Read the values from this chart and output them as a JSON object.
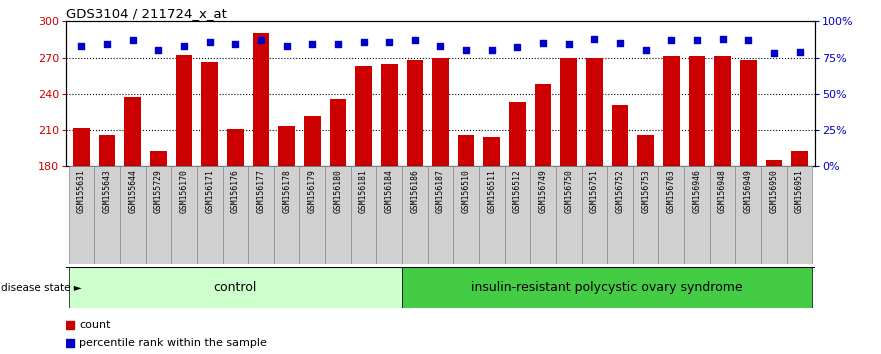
{
  "title": "GDS3104 / 211724_x_at",
  "samples": [
    "GSM155631",
    "GSM155643",
    "GSM155644",
    "GSM155729",
    "GSM156170",
    "GSM156171",
    "GSM156176",
    "GSM156177",
    "GSM156178",
    "GSM156179",
    "GSM156180",
    "GSM156181",
    "GSM156184",
    "GSM156186",
    "GSM156187",
    "GSM156510",
    "GSM156511",
    "GSM156512",
    "GSM156749",
    "GSM156750",
    "GSM156751",
    "GSM156752",
    "GSM156753",
    "GSM156763",
    "GSM156946",
    "GSM156948",
    "GSM156949",
    "GSM156950",
    "GSM156951"
  ],
  "bar_values": [
    212,
    206,
    237,
    193,
    272,
    266,
    211,
    290,
    213,
    222,
    236,
    263,
    265,
    268,
    270,
    206,
    204,
    233,
    248,
    270,
    270,
    231,
    206,
    271,
    271,
    271,
    268,
    185,
    193
  ],
  "percentile_values": [
    83,
    84,
    87,
    80,
    83,
    86,
    84,
    87,
    83,
    84,
    84,
    86,
    86,
    87,
    83,
    80,
    80,
    82,
    85,
    84,
    88,
    85,
    80,
    87,
    87,
    88,
    87,
    78,
    79
  ],
  "n_control": 13,
  "ylim_left": [
    180,
    300
  ],
  "ylim_right": [
    0,
    100
  ],
  "yticks_left": [
    180,
    210,
    240,
    270,
    300
  ],
  "yticks_right": [
    0,
    25,
    50,
    75,
    100
  ],
  "ytick_right_labels": [
    "0%",
    "25%",
    "50%",
    "75%",
    "100%"
  ],
  "bar_color": "#cc0000",
  "dot_color": "#0000cc",
  "control_color": "#ccffcc",
  "disease_color": "#44cc44",
  "control_label": "control",
  "disease_label": "insulin-resistant polycystic ovary syndrome",
  "legend_count": "count",
  "legend_percentile": "percentile rank within the sample",
  "hgrid_values": [
    210,
    240,
    270
  ],
  "disease_state_label": "disease state",
  "bar_bottom": 180,
  "ylabel_left_color": "#cc0000",
  "ylabel_right_color": "#0000cc",
  "xtick_box_color": "#d0d0d0",
  "xtick_box_edge": "#888888"
}
